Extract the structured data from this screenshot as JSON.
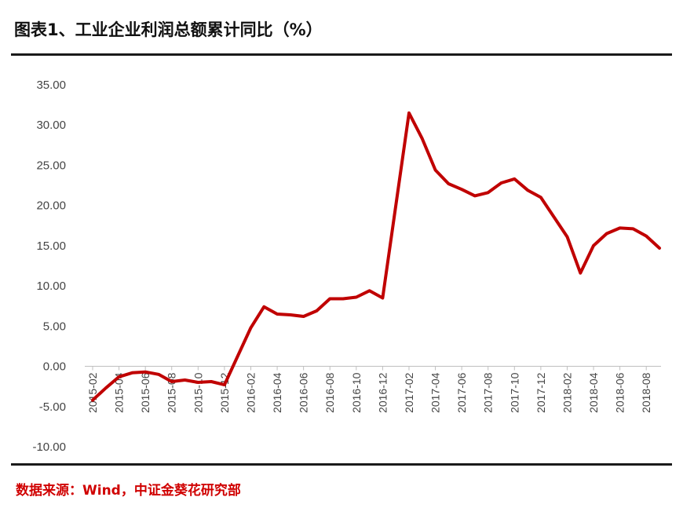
{
  "header": {
    "title": "图表1、工业企业利润总额累计同比（%）"
  },
  "footer": {
    "source": "数据来源：Wind，中证金葵花研究部"
  },
  "colors": {
    "line": "#c00000",
    "axis": "#bfbfbf",
    "rule": "#1a1a1a",
    "source": "#d00000"
  },
  "chart_data": {
    "type": "line",
    "title": "图表1、工业企业利润总额累计同比（%）",
    "xlabel": "",
    "ylabel": "",
    "ylim": [
      -10,
      35
    ],
    "ytick_labels": [
      "35.00",
      "30.00",
      "25.00",
      "20.00",
      "15.00",
      "10.00",
      "5.00",
      "0.00",
      "-5.00",
      "-10.00"
    ],
    "xtick_labels": [
      "2015-02",
      "2015-04",
      "2015-06",
      "2015-08",
      "2015-10",
      "2015-12",
      "2016-02",
      "2016-04",
      "2016-06",
      "2016-08",
      "2016-10",
      "2016-12",
      "2017-02",
      "2017-04",
      "2017-06",
      "2017-08",
      "2017-10",
      "2017-12",
      "2018-02",
      "2018-04",
      "2018-06",
      "2018-08"
    ],
    "grid": false,
    "legend": "none",
    "series": [
      {
        "x": [
          "2015-02",
          "2015-03",
          "2015-04",
          "2015-05",
          "2015-06",
          "2015-07",
          "2015-08",
          "2015-09",
          "2015-10",
          "2015-11",
          "2015-12",
          "2016-02",
          "2016-03",
          "2016-04",
          "2016-05",
          "2016-06",
          "2016-07",
          "2016-08",
          "2016-09",
          "2016-10",
          "2016-11",
          "2016-12",
          "2017-02",
          "2017-03",
          "2017-04",
          "2017-05",
          "2017-06",
          "2017-07",
          "2017-08",
          "2017-09",
          "2017-10",
          "2017-11",
          "2017-12",
          "2018-02",
          "2018-03",
          "2018-04",
          "2018-05",
          "2018-06",
          "2018-07",
          "2018-08",
          "2018-09"
        ],
        "values": [
          -4.2,
          -2.7,
          -1.3,
          -0.8,
          -0.7,
          -1.0,
          -1.9,
          -1.7,
          -2.0,
          -1.9,
          -2.3,
          4.8,
          7.4,
          6.5,
          6.4,
          6.2,
          6.9,
          8.4,
          8.4,
          8.6,
          9.4,
          8.5,
          31.5,
          28.3,
          24.4,
          22.7,
          22.0,
          21.2,
          21.6,
          22.8,
          23.3,
          21.9,
          21.0,
          16.1,
          11.6,
          15.0,
          16.5,
          17.2,
          17.1,
          16.2,
          14.7
        ]
      }
    ]
  }
}
